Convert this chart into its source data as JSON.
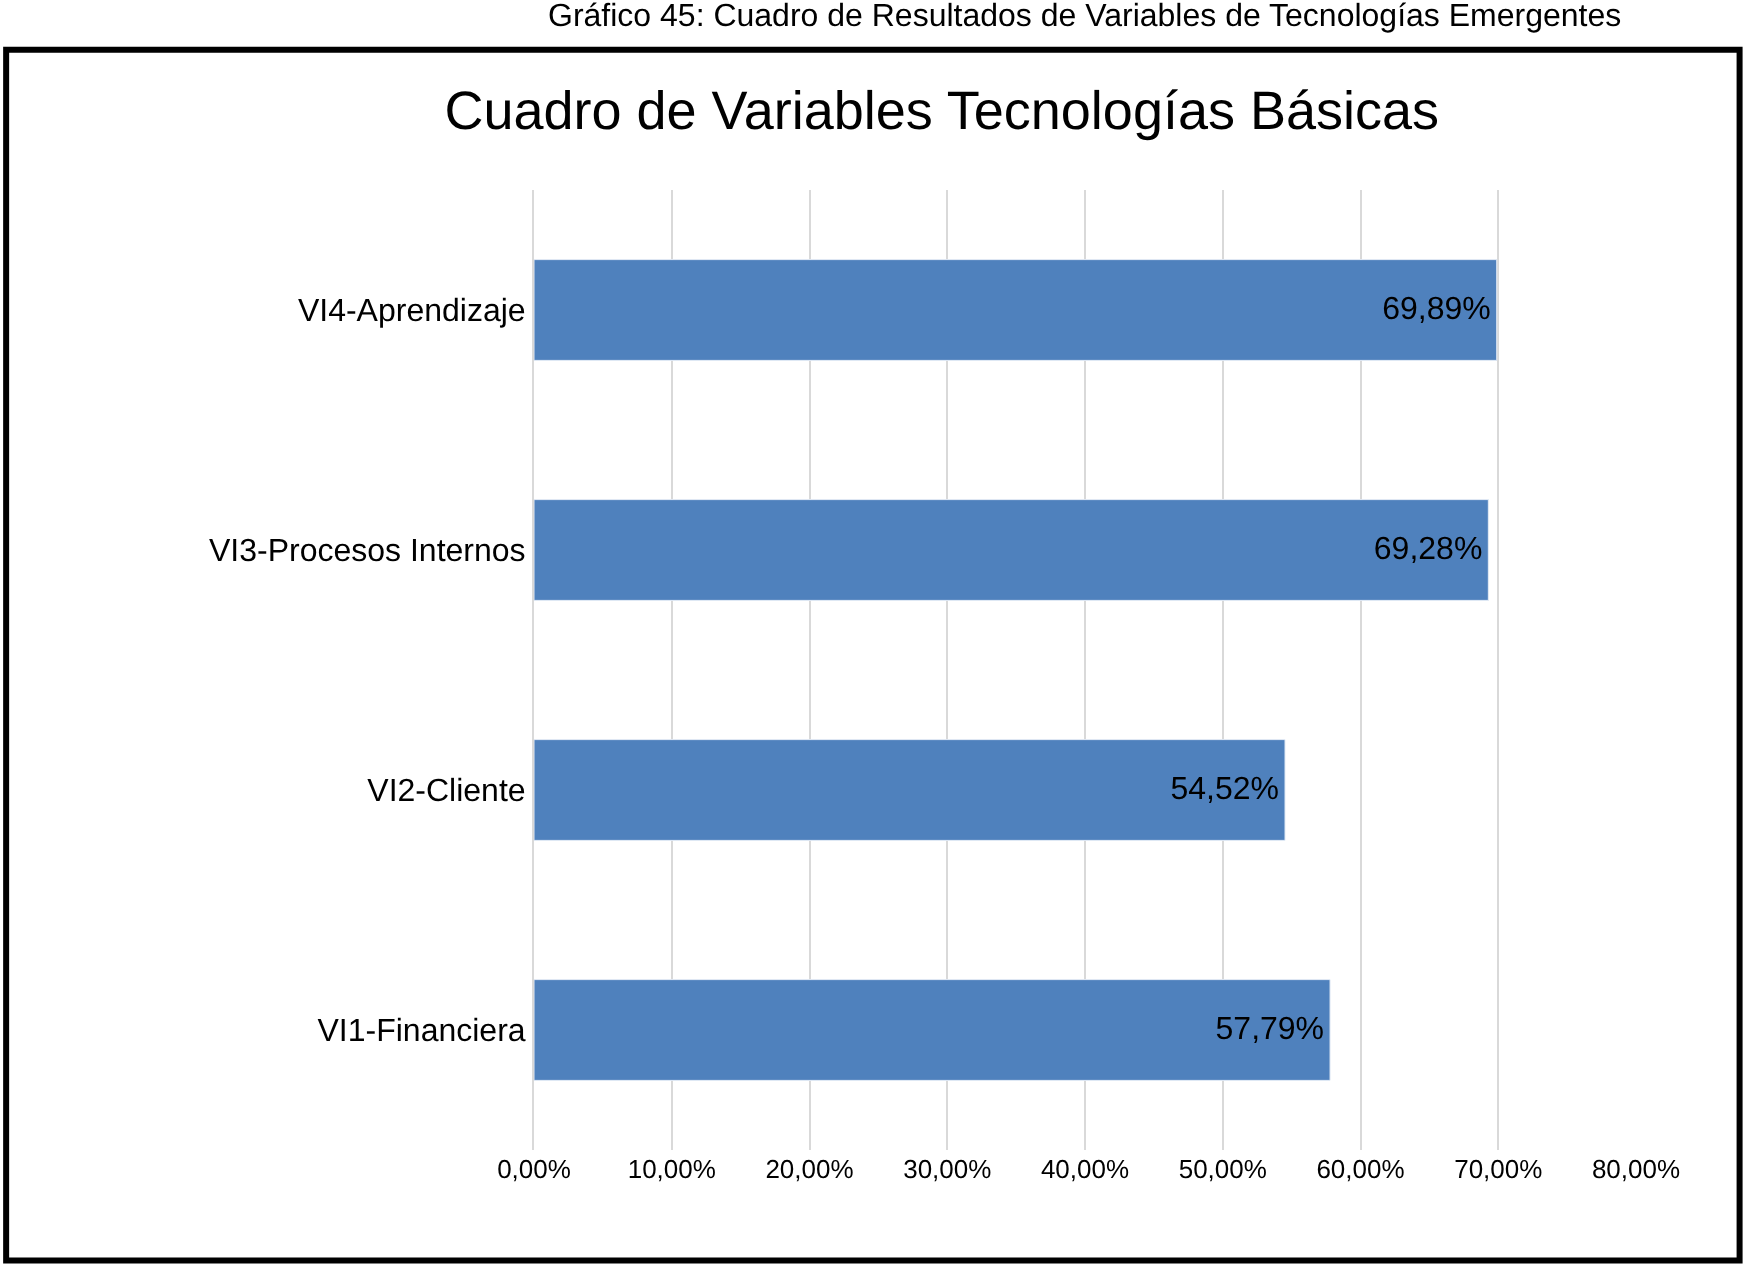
{
  "chart_data": {
    "type": "bar",
    "orientation": "horizontal",
    "title": "Cuadro de Variables Tecnologías Básicas",
    "annotations": [
      "Gráfico 45: Cuadro de Resultados de Variables de Tecnologías Emergentes"
    ],
    "categories": [
      "VI4-Aprendizaje",
      "VI3-Procesos Internos",
      "VI2-Cliente",
      "VI1-Financiera"
    ],
    "values": [
      69.89,
      69.28,
      54.52,
      57.79
    ],
    "value_labels": [
      "69,89%",
      "69,28%",
      "54,52%",
      "57,79%"
    ],
    "color": "#4f81bd",
    "xlim": [
      0,
      80
    ],
    "xticks": [
      {
        "value": 0,
        "label": "0,00%"
      },
      {
        "value": 10,
        "label": "10,00%"
      },
      {
        "value": 20,
        "label": "20,00%"
      },
      {
        "value": 30,
        "label": "30,00%"
      },
      {
        "value": 40,
        "label": "40,00%"
      },
      {
        "value": 50,
        "label": "50,00%"
      },
      {
        "value": 60,
        "label": "60,00%"
      },
      {
        "value": 70,
        "label": "70,00%"
      },
      {
        "value": 80,
        "label": "80,00%"
      }
    ],
    "grid": "x",
    "legend": false
  }
}
